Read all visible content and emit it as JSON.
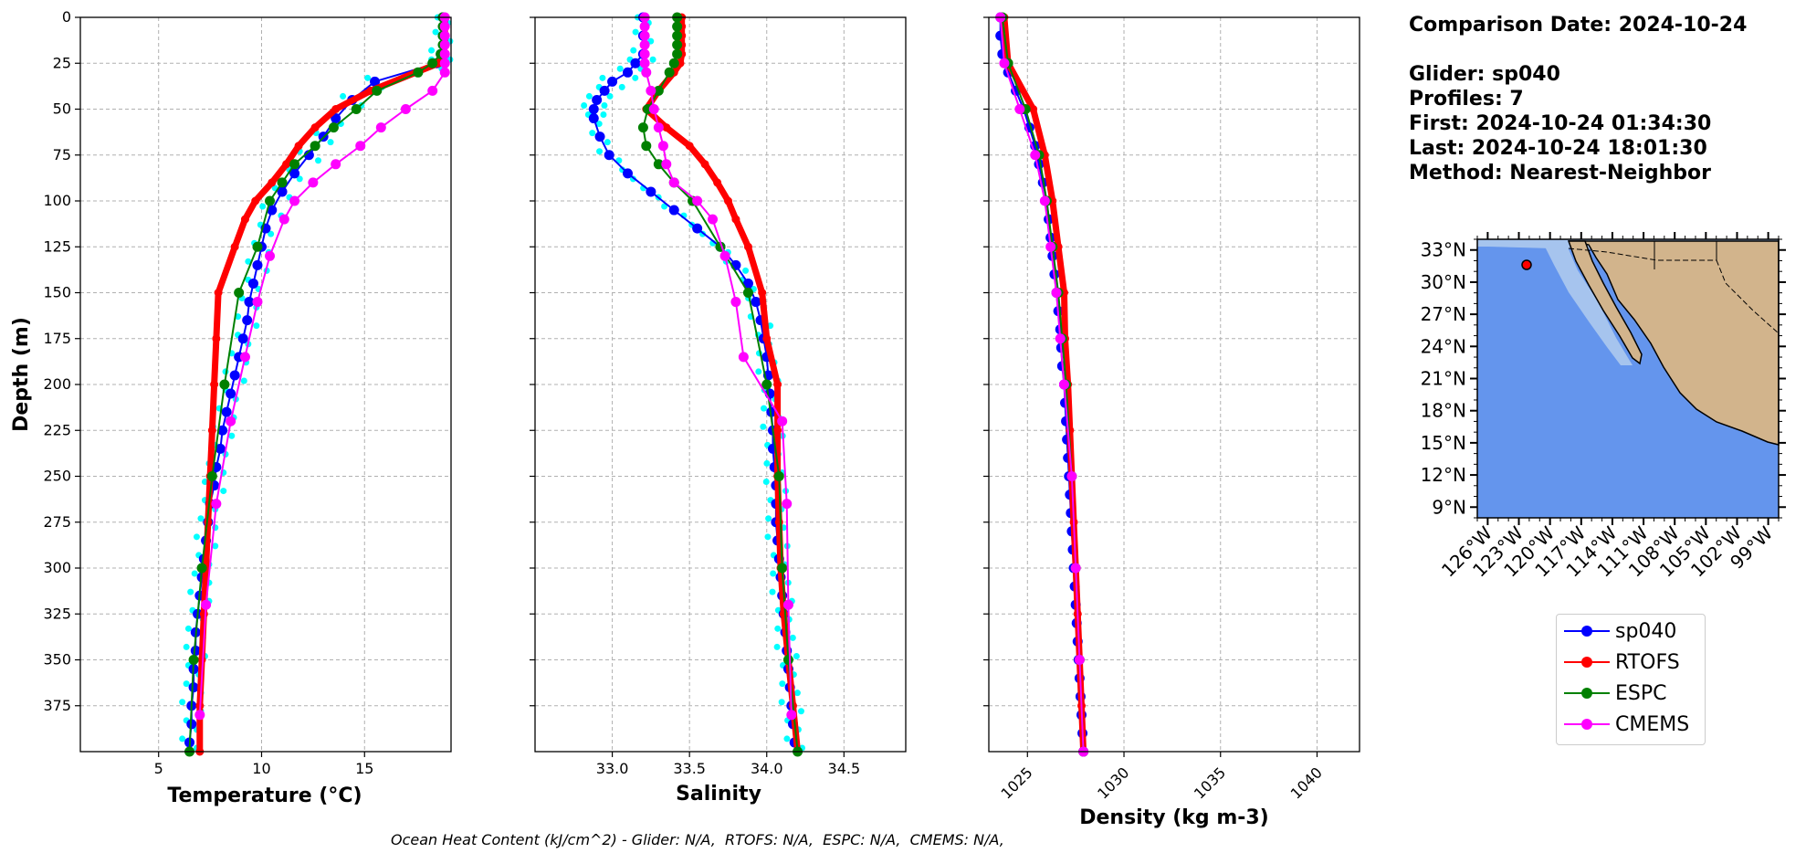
{
  "info": {
    "comparison_date": "Comparison Date: 2024-10-24",
    "glider": "Glider: sp040",
    "profiles": "Profiles: 7",
    "first": "First: 2024-10-24 01:34:30",
    "last": "Last: 2024-10-24 18:01:30",
    "method": "Method: Nearest-Neighbor"
  },
  "footnote": "Ocean Heat Content (kJ/cm^2) - Glider: N/A,  RTOFS: N/A,  ESPC: N/A,  CMEMS: N/A,",
  "colors": {
    "sp040": "#0000ff",
    "rtofs": "#ff0000",
    "espc": "#008000",
    "cmems": "#ff00ff",
    "glider_raw": "#00ffff",
    "ocean": "#6495ed",
    "shelf": "#a6c4ee",
    "land": "#d2b48c"
  },
  "legend": [
    "sp040",
    "RTOFS",
    "ESPC",
    "CMEMS"
  ],
  "map": {
    "lat_ticks": [
      "33°N",
      "30°N",
      "27°N",
      "24°N",
      "21°N",
      "18°N",
      "15°N",
      "12°N",
      "9°N"
    ],
    "lon_ticks": [
      "126°W",
      "123°W",
      "120°W",
      "117°W",
      "114°W",
      "111°W",
      "108°W",
      "105°W",
      "102°W",
      "99°W"
    ],
    "extent": {
      "lon_min": -127,
      "lon_max": -98,
      "lat_min": 8,
      "lat_max": 34
    },
    "glider_location": {
      "lon": -122.5,
      "lat": 31.8
    }
  },
  "chart_data": [
    {
      "type": "line",
      "xlabel": "Temperature (°C)",
      "ylabel": "Depth (m)",
      "xlim": [
        1.2,
        19.2
      ],
      "ylim": [
        400,
        0
      ],
      "x_ticks": [
        5,
        10,
        15
      ],
      "y_ticks": [
        0,
        25,
        50,
        75,
        100,
        125,
        150,
        175,
        200,
        225,
        250,
        275,
        300,
        325,
        350,
        375
      ],
      "series": [
        {
          "name": "sp040",
          "depth": [
            0,
            10,
            20,
            25,
            35,
            45,
            55,
            65,
            75,
            85,
            95,
            105,
            115,
            125,
            135,
            145,
            155,
            165,
            175,
            185,
            195,
            205,
            215,
            225,
            235,
            245,
            255,
            265,
            275,
            285,
            295,
            305,
            315,
            325,
            335,
            345,
            355,
            365,
            375,
            385,
            395
          ],
          "values": [
            18.8,
            18.8,
            18.7,
            18.5,
            15.5,
            14.4,
            13.6,
            13.0,
            12.3,
            11.6,
            11.0,
            10.5,
            10.2,
            10.0,
            9.8,
            9.6,
            9.4,
            9.3,
            9.1,
            8.9,
            8.7,
            8.5,
            8.3,
            8.1,
            8.0,
            7.8,
            7.7,
            7.5,
            7.4,
            7.3,
            7.2,
            7.1,
            7.0,
            6.9,
            6.8,
            6.8,
            6.7,
            6.7,
            6.6,
            6.6,
            6.5
          ]
        },
        {
          "name": "RTOFS",
          "depth": [
            0,
            5,
            10,
            15,
            20,
            25,
            30,
            40,
            50,
            60,
            70,
            80,
            90,
            100,
            110,
            125,
            150,
            175,
            200,
            225,
            250,
            275,
            300,
            325,
            350,
            375,
            400
          ],
          "values": [
            18.9,
            18.9,
            18.9,
            18.9,
            18.8,
            18.6,
            17.5,
            15.3,
            13.6,
            12.6,
            11.8,
            11.2,
            10.5,
            9.7,
            9.2,
            8.7,
            7.9,
            7.8,
            7.7,
            7.6,
            7.5,
            7.4,
            7.3,
            7.2,
            7.1,
            7.0,
            7.0
          ]
        },
        {
          "name": "ESPC",
          "depth": [
            0,
            5,
            10,
            15,
            20,
            25,
            30,
            40,
            50,
            60,
            70,
            80,
            90,
            100,
            125,
            150,
            200,
            250,
            300,
            350,
            400
          ],
          "values": [
            18.8,
            18.8,
            18.8,
            18.8,
            18.7,
            18.3,
            17.6,
            15.6,
            14.6,
            13.5,
            12.6,
            11.6,
            11.0,
            10.4,
            9.8,
            8.9,
            8.2,
            7.6,
            7.1,
            6.7,
            6.5
          ]
        },
        {
          "name": "CMEMS",
          "depth": [
            0,
            5,
            10,
            15,
            20,
            25,
            30,
            40,
            50,
            60,
            70,
            80,
            90,
            100,
            110,
            130,
            155,
            185,
            220,
            265,
            320,
            380
          ],
          "values": [
            18.9,
            18.9,
            18.9,
            18.9,
            18.9,
            18.9,
            18.9,
            18.3,
            17.0,
            15.8,
            14.8,
            13.6,
            12.5,
            11.6,
            11.1,
            10.4,
            9.8,
            9.2,
            8.5,
            7.8,
            7.3,
            7.0
          ]
        }
      ]
    },
    {
      "type": "line",
      "xlabel": "Salinity",
      "xlim": [
        32.5,
        34.9
      ],
      "ylim": [
        400,
        0
      ],
      "x_ticks": [
        33.0,
        33.5,
        34.0,
        34.5
      ],
      "series": [
        {
          "name": "sp040",
          "depth": [
            0,
            10,
            20,
            25,
            30,
            35,
            40,
            45,
            50,
            55,
            65,
            75,
            85,
            95,
            105,
            115,
            125,
            135,
            145,
            155,
            165,
            175,
            185,
            195,
            205,
            215,
            225,
            235,
            245,
            255,
            265,
            275,
            285,
            295,
            305,
            315,
            325,
            335,
            345,
            355,
            365,
            375,
            385,
            395
          ],
          "values": [
            33.2,
            33.2,
            33.2,
            33.15,
            33.1,
            33.0,
            32.95,
            32.9,
            32.88,
            32.88,
            32.92,
            32.98,
            33.1,
            33.25,
            33.4,
            33.55,
            33.7,
            33.8,
            33.88,
            33.93,
            33.96,
            33.98,
            34.0,
            34.01,
            34.02,
            34.03,
            34.04,
            34.04,
            34.05,
            34.06,
            34.06,
            34.06,
            34.07,
            34.08,
            34.09,
            34.1,
            34.11,
            34.12,
            34.13,
            34.14,
            34.15,
            34.16,
            34.17,
            34.18
          ]
        },
        {
          "name": "RTOFS",
          "depth": [
            0,
            5,
            10,
            15,
            20,
            25,
            30,
            40,
            50,
            60,
            70,
            80,
            90,
            100,
            110,
            125,
            150,
            175,
            200,
            225,
            250,
            275,
            300,
            325,
            350,
            375,
            400
          ],
          "values": [
            33.45,
            33.45,
            33.45,
            33.45,
            33.45,
            33.44,
            33.4,
            33.3,
            33.22,
            33.35,
            33.5,
            33.6,
            33.68,
            33.75,
            33.8,
            33.88,
            33.97,
            34.0,
            34.07,
            34.07,
            34.07,
            34.08,
            34.09,
            34.11,
            34.14,
            34.17,
            34.2
          ]
        },
        {
          "name": "ESPC",
          "depth": [
            0,
            5,
            10,
            15,
            20,
            25,
            30,
            40,
            50,
            60,
            70,
            80,
            90,
            100,
            125,
            150,
            200,
            250,
            300,
            350,
            400
          ],
          "values": [
            33.42,
            33.42,
            33.42,
            33.42,
            33.42,
            33.4,
            33.37,
            33.3,
            33.23,
            33.2,
            33.22,
            33.3,
            33.4,
            33.52,
            33.7,
            33.88,
            34.0,
            34.08,
            34.1,
            34.14,
            34.2
          ]
        },
        {
          "name": "CMEMS",
          "depth": [
            0,
            5,
            10,
            15,
            20,
            25,
            30,
            40,
            50,
            60,
            70,
            80,
            90,
            100,
            110,
            130,
            155,
            185,
            220,
            265,
            320,
            380
          ],
          "values": [
            33.21,
            33.21,
            33.21,
            33.21,
            33.21,
            33.21,
            33.22,
            33.25,
            33.27,
            33.3,
            33.33,
            33.35,
            33.4,
            33.55,
            33.65,
            33.73,
            33.8,
            33.85,
            34.1,
            34.13,
            34.14,
            34.16
          ]
        }
      ]
    },
    {
      "type": "line",
      "xlabel": "Density (kg m-3)",
      "xlim": [
        1023.0,
        1042.2
      ],
      "ylim": [
        400,
        0
      ],
      "x_ticks": [
        1025,
        1030,
        1035,
        1040
      ],
      "series": [
        {
          "name": "sp040",
          "depth": [
            0,
            10,
            20,
            30,
            40,
            50,
            60,
            70,
            80,
            90,
            100,
            110,
            120,
            130,
            140,
            150,
            160,
            170,
            180,
            190,
            200,
            210,
            220,
            230,
            240,
            250,
            260,
            270,
            280,
            290,
            300,
            310,
            320,
            330,
            340,
            350,
            360,
            370,
            380,
            390,
            400
          ],
          "values": [
            1023.6,
            1023.6,
            1023.7,
            1024.0,
            1024.4,
            1024.8,
            1025.1,
            1025.4,
            1025.6,
            1025.8,
            1026.0,
            1026.1,
            1026.2,
            1026.3,
            1026.4,
            1026.5,
            1026.6,
            1026.7,
            1026.75,
            1026.8,
            1026.9,
            1026.95,
            1027.0,
            1027.05,
            1027.1,
            1027.15,
            1027.2,
            1027.25,
            1027.3,
            1027.35,
            1027.4,
            1027.45,
            1027.5,
            1027.55,
            1027.6,
            1027.65,
            1027.7,
            1027.75,
            1027.8,
            1027.85,
            1027.9
          ]
        },
        {
          "name": "RTOFS",
          "depth": [
            0,
            25,
            50,
            75,
            100,
            125,
            150,
            175,
            200,
            225,
            250,
            275,
            300,
            325,
            350,
            375,
            400
          ],
          "values": [
            1023.8,
            1024.0,
            1025.3,
            1025.9,
            1026.3,
            1026.6,
            1026.9,
            1026.95,
            1027.1,
            1027.2,
            1027.3,
            1027.4,
            1027.5,
            1027.6,
            1027.7,
            1027.8,
            1027.9
          ]
        },
        {
          "name": "ESPC",
          "depth": [
            0,
            25,
            50,
            75,
            100,
            125,
            150,
            175,
            200,
            250,
            300,
            350,
            400
          ],
          "values": [
            1023.7,
            1024.0,
            1024.9,
            1025.6,
            1026.0,
            1026.3,
            1026.6,
            1026.8,
            1027.0,
            1027.3,
            1027.5,
            1027.7,
            1027.9
          ]
        },
        {
          "name": "CMEMS",
          "depth": [
            0,
            25,
            50,
            75,
            100,
            125,
            150,
            175,
            200,
            250,
            300,
            350,
            400
          ],
          "values": [
            1023.6,
            1023.8,
            1024.6,
            1025.4,
            1025.9,
            1026.2,
            1026.5,
            1026.7,
            1026.9,
            1027.3,
            1027.5,
            1027.7,
            1027.9
          ]
        }
      ]
    }
  ]
}
